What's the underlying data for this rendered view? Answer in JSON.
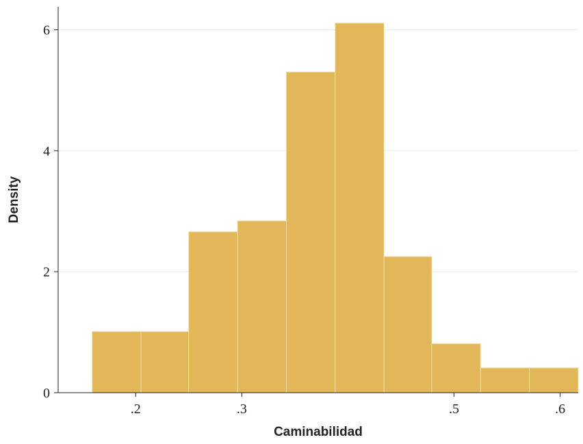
{
  "chart_data": {
    "type": "histogram",
    "x_label": "Caminabilidad",
    "y_label": "Density",
    "bins": [
      0.159,
      0.205,
      0.25,
      0.296,
      0.342,
      0.388,
      0.434,
      0.479,
      0.525,
      0.571,
      0.617
    ],
    "values": [
      1.01,
      1.01,
      2.66,
      2.84,
      5.3,
      6.11,
      2.25,
      0.81,
      0.41,
      0.41
    ],
    "color": "#e1b75a",
    "xlim": [
      0.127,
      0.617
    ],
    "xticks": [
      {
        "value": 0.2,
        "label": ".2"
      },
      {
        "value": 0.3,
        "label": ".3"
      },
      {
        "value": 0.5,
        "label": ".5"
      },
      {
        "value": 0.6,
        "label": ".6"
      }
    ],
    "ylim": [
      0,
      6.22
    ],
    "yticks": [
      0,
      2,
      4,
      6
    ],
    "grid": true
  }
}
